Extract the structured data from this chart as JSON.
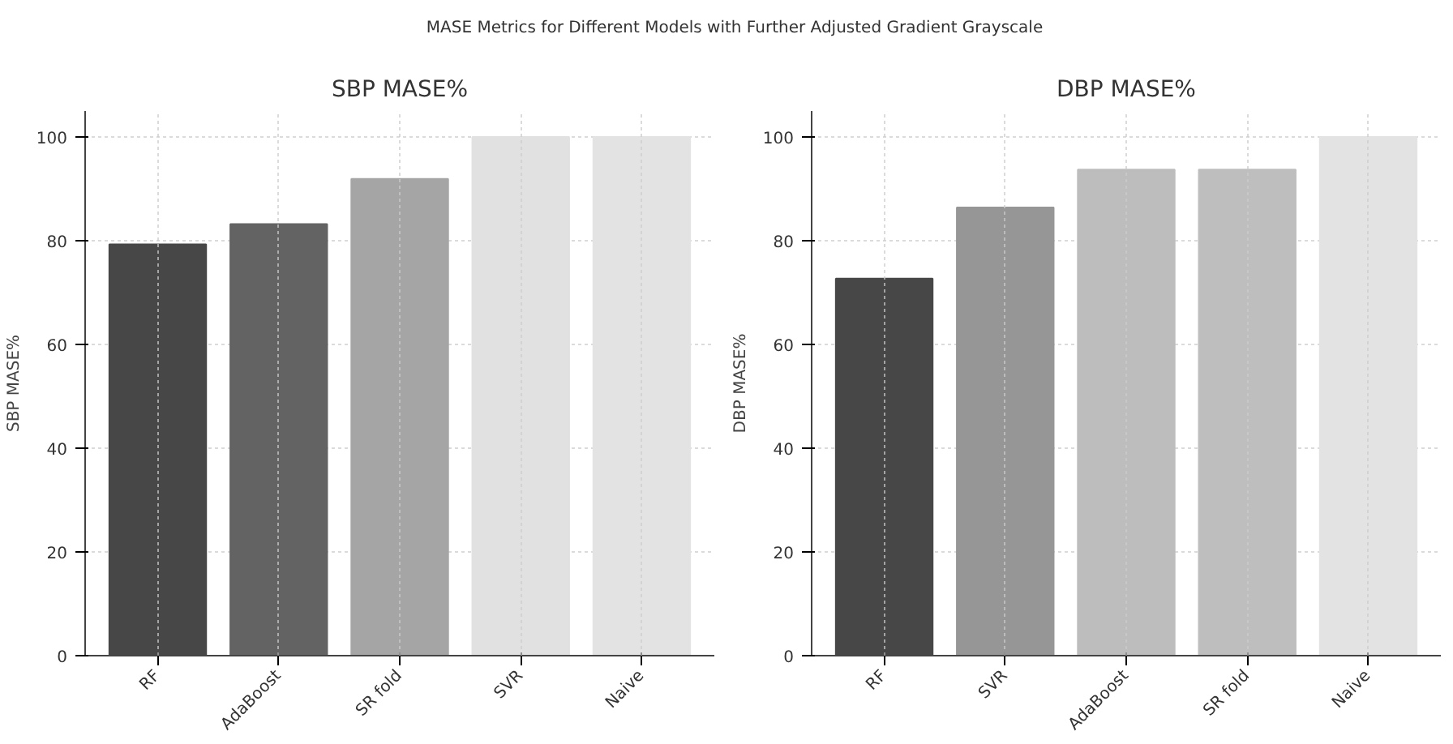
{
  "chart_data": [
    {
      "type": "bar",
      "title": "SBP MASE%",
      "ylabel": "SBP MASE%",
      "annotations": [
        "MASE Metrics for Different Models with Further Adjusted Gradient Grayscale"
      ],
      "categories": [
        "RF",
        "AdaBoost",
        "SR fold",
        "SVR",
        "Naive"
      ],
      "values": [
        79.3,
        83.2,
        91.9,
        100,
        100
      ],
      "colors": [
        "#474747",
        "#636363",
        "#a5a5a5",
        "#e1e1e1",
        "#e3e3e3"
      ],
      "ylim": [
        0,
        105
      ],
      "yticks": [
        0,
        20,
        40,
        60,
        80,
        100
      ],
      "grid": true
    },
    {
      "type": "bar",
      "title": "DBP MASE%",
      "ylabel": "DBP MASE%",
      "categories": [
        "RF",
        "SVR",
        "AdaBoost",
        "SR fold",
        "Naive"
      ],
      "values": [
        72.7,
        86.4,
        93.7,
        93.7,
        100
      ],
      "colors": [
        "#474747",
        "#969696",
        "#bdbdbd",
        "#bebebe",
        "#e3e3e3"
      ],
      "ylim": [
        0,
        105
      ],
      "yticks": [
        0,
        20,
        40,
        60,
        80,
        100
      ],
      "grid": true
    }
  ]
}
